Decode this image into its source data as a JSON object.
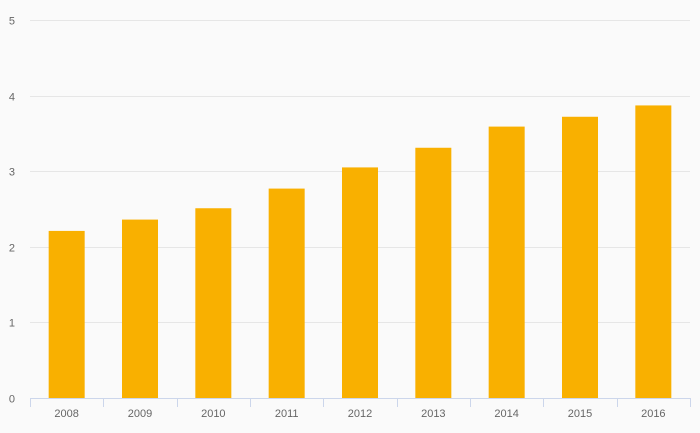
{
  "chart_data": {
    "type": "bar",
    "title": "",
    "xlabel": "",
    "ylabel": "",
    "categories": [
      "2008",
      "2009",
      "2010",
      "2011",
      "2012",
      "2013",
      "2014",
      "2015",
      "2016"
    ],
    "values": [
      2.21,
      2.36,
      2.51,
      2.77,
      3.05,
      3.31,
      3.59,
      3.72,
      3.87
    ],
    "ylim": [
      0,
      5
    ],
    "yticks": [
      "0",
      "1",
      "2",
      "3",
      "4",
      "5"
    ],
    "grid": true,
    "legend": "none",
    "colors": {
      "bar": "#F9B000",
      "grid": "#e6e6e6",
      "axis": "#ccd6eb",
      "background": "#fafafa",
      "tick_text": "#666666"
    }
  }
}
